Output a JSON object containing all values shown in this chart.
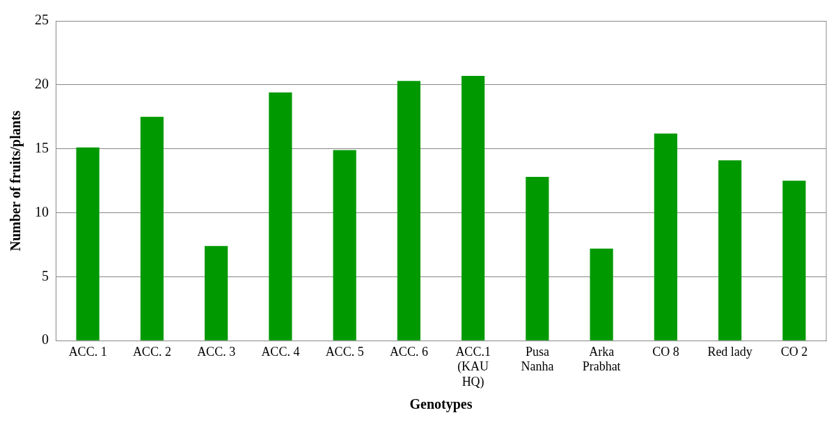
{
  "chart_data": {
    "type": "bar",
    "xlabel": "Genotypes",
    "ylabel": "Number of fruits/plants",
    "categories": [
      "ACC. 1",
      "ACC. 2",
      "ACC. 3",
      "ACC. 4",
      "ACC. 5",
      "ACC. 6",
      "ACC.1\n(KAU\nHQ)",
      "Pusa\nNanha",
      "Arka\nPrabhat",
      "CO 8",
      "Red lady",
      "CO 2"
    ],
    "values": [
      15.1,
      17.5,
      7.4,
      19.4,
      14.9,
      20.3,
      20.7,
      12.8,
      7.2,
      16.2,
      14.1,
      12.5
    ],
    "color": "#009900",
    "ylim": [
      0,
      25
    ],
    "yticks": [
      0,
      5,
      10,
      15,
      20,
      25
    ],
    "grid": "y"
  }
}
